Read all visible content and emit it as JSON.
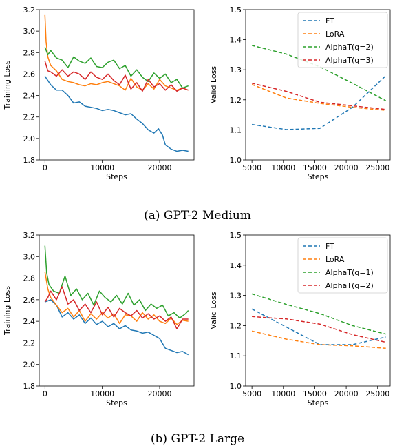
{
  "captions": {
    "a": "(a) GPT-2 Medium",
    "b": "(b) GPT-2 Large"
  },
  "colors": {
    "FT": "#1f77b4",
    "LoRA": "#ff7f0e",
    "AlphaT_a": "#2ca02c",
    "AlphaT_b": "#d62728"
  },
  "chart_data": [
    {
      "type": "line",
      "panel": "GPT-2 Medium training",
      "title": "",
      "xlabel": "Steps",
      "ylabel": "Training Loss",
      "xlim": [
        -1000,
        26000
      ],
      "ylim": [
        1.8,
        3.2
      ],
      "xticks": [
        0,
        10000,
        20000
      ],
      "xtick_labels": [
        "0",
        "10000",
        "20000"
      ],
      "yticks": [
        1.8,
        2.0,
        2.2,
        2.4,
        2.6,
        2.8,
        3.0,
        3.2
      ],
      "ytick_labels": [
        "1.8",
        "2.0",
        "2.2",
        "2.4",
        "2.6",
        "2.8",
        "3.0",
        "3.2"
      ],
      "legend": "none",
      "grid": false,
      "series": [
        {
          "color": "#1f77b4",
          "x": [
            0,
            500,
            1000,
            2000,
            3000,
            4000,
            5000,
            6000,
            7000,
            8000,
            9000,
            10000,
            11000,
            12000,
            13000,
            14000,
            15000,
            16000,
            17000,
            18000,
            19000,
            19800,
            20500,
            21000,
            22000,
            23000,
            24000,
            25000
          ],
          "y": [
            2.58,
            2.54,
            2.5,
            2.45,
            2.45,
            2.4,
            2.33,
            2.34,
            2.3,
            2.29,
            2.28,
            2.26,
            2.27,
            2.26,
            2.24,
            2.22,
            2.23,
            2.18,
            2.14,
            2.08,
            2.05,
            2.09,
            2.03,
            1.94,
            1.9,
            1.88,
            1.89,
            1.88
          ]
        },
        {
          "color": "#ff7f0e",
          "x": [
            0,
            200,
            500,
            1000,
            2000,
            3000,
            4000,
            5000,
            6000,
            7000,
            8000,
            9000,
            10000,
            11000,
            12000,
            13000,
            14000,
            15000,
            16000,
            17000,
            18000,
            19000,
            20000,
            21000,
            22000,
            23000,
            24000,
            25000
          ],
          "y": [
            3.15,
            2.9,
            2.76,
            2.68,
            2.63,
            2.55,
            2.53,
            2.52,
            2.5,
            2.49,
            2.51,
            2.5,
            2.52,
            2.53,
            2.51,
            2.49,
            2.45,
            2.56,
            2.48,
            2.45,
            2.51,
            2.46,
            2.55,
            2.49,
            2.47,
            2.45,
            2.47,
            2.45
          ]
        },
        {
          "color": "#2ca02c",
          "x": [
            0,
            500,
            1000,
            2000,
            3000,
            4000,
            5000,
            6000,
            7000,
            8000,
            9000,
            10000,
            11000,
            12000,
            13000,
            14000,
            15000,
            16000,
            17000,
            18000,
            19000,
            20000,
            21000,
            22000,
            23000,
            24000,
            25000
          ],
          "y": [
            2.85,
            2.78,
            2.82,
            2.75,
            2.73,
            2.66,
            2.76,
            2.72,
            2.7,
            2.75,
            2.67,
            2.66,
            2.71,
            2.73,
            2.65,
            2.68,
            2.58,
            2.64,
            2.57,
            2.53,
            2.61,
            2.56,
            2.6,
            2.52,
            2.55,
            2.47,
            2.49
          ]
        },
        {
          "color": "#d62728",
          "x": [
            0,
            500,
            1000,
            2000,
            3000,
            4000,
            5000,
            6000,
            7000,
            8000,
            9000,
            10000,
            11000,
            12000,
            13000,
            14000,
            15000,
            16000,
            17000,
            18000,
            19000,
            20000,
            21000,
            22000,
            23000,
            24000,
            25000
          ],
          "y": [
            2.72,
            2.63,
            2.62,
            2.58,
            2.64,
            2.58,
            2.62,
            2.6,
            2.55,
            2.62,
            2.57,
            2.55,
            2.6,
            2.54,
            2.5,
            2.59,
            2.46,
            2.52,
            2.44,
            2.55,
            2.48,
            2.51,
            2.45,
            2.5,
            2.44,
            2.47,
            2.45
          ]
        }
      ]
    },
    {
      "type": "line",
      "panel": "GPT-2 Medium validation",
      "title": "",
      "xlabel": "Steps",
      "ylabel": "Valid Loss",
      "xlim": [
        4000,
        27000
      ],
      "ylim": [
        1.0,
        1.5
      ],
      "xticks": [
        5000,
        10000,
        15000,
        20000,
        25000
      ],
      "xtick_labels": [
        "5000",
        "10000",
        "15000",
        "20000",
        "25000"
      ],
      "yticks": [
        1.0,
        1.1,
        1.2,
        1.3,
        1.4,
        1.5
      ],
      "ytick_labels": [
        "1.0",
        "1.1",
        "1.2",
        "1.3",
        "1.4",
        "1.5"
      ],
      "legend": "top-right",
      "grid": false,
      "series": [
        {
          "name": "FT",
          "color": "#1f77b4",
          "x": [
            5000,
            10500,
            15800,
            21000,
            26300
          ],
          "y": [
            1.118,
            1.101,
            1.105,
            1.175,
            1.28
          ]
        },
        {
          "name": "LoRA",
          "color": "#ff7f0e",
          "x": [
            5000,
            10500,
            15800,
            21000,
            26300
          ],
          "y": [
            1.251,
            1.206,
            1.188,
            1.175,
            1.165
          ]
        },
        {
          "name": "AlphaT(q=2)",
          "color": "#2ca02c",
          "x": [
            5000,
            10500,
            15800,
            21000,
            26300
          ],
          "y": [
            1.381,
            1.352,
            1.31,
            1.255,
            1.197
          ]
        },
        {
          "name": "AlphaT(q=3)",
          "color": "#d62728",
          "x": [
            5000,
            10500,
            15800,
            21000,
            26300
          ],
          "y": [
            1.255,
            1.228,
            1.192,
            1.18,
            1.168
          ]
        }
      ]
    },
    {
      "type": "line",
      "panel": "GPT-2 Large training",
      "title": "",
      "xlabel": "Steps",
      "ylabel": "Training Loss",
      "xlim": [
        -1000,
        26000
      ],
      "ylim": [
        1.8,
        3.2
      ],
      "xticks": [
        0,
        10000,
        20000
      ],
      "xtick_labels": [
        "0",
        "10000",
        "20000"
      ],
      "yticks": [
        1.8,
        2.0,
        2.2,
        2.4,
        2.6,
        2.8,
        3.0,
        3.2
      ],
      "ytick_labels": [
        "1.8",
        "2.0",
        "2.2",
        "2.4",
        "2.6",
        "2.8",
        "3.0",
        "3.2"
      ],
      "legend": "none",
      "grid": false,
      "series": [
        {
          "color": "#1f77b4",
          "x": [
            0,
            1000,
            2000,
            3000,
            4000,
            5000,
            6000,
            7000,
            8000,
            9000,
            10000,
            11000,
            12000,
            13000,
            14000,
            15000,
            16000,
            17000,
            18000,
            19000,
            20000,
            21000,
            22000,
            23000,
            24000,
            25000
          ],
          "y": [
            2.58,
            2.6,
            2.55,
            2.44,
            2.48,
            2.42,
            2.46,
            2.38,
            2.43,
            2.37,
            2.4,
            2.35,
            2.38,
            2.33,
            2.36,
            2.32,
            2.31,
            2.29,
            2.3,
            2.27,
            2.24,
            2.15,
            2.13,
            2.11,
            2.12,
            2.09
          ]
        },
        {
          "color": "#ff7f0e",
          "x": [
            0,
            500,
            1000,
            2000,
            3000,
            4000,
            5000,
            6000,
            7000,
            8000,
            9000,
            10000,
            11000,
            12000,
            13000,
            14000,
            15000,
            16000,
            17000,
            18000,
            19000,
            20000,
            21000,
            22000,
            23000,
            24000,
            25000
          ],
          "y": [
            2.86,
            2.7,
            2.62,
            2.55,
            2.48,
            2.52,
            2.44,
            2.5,
            2.4,
            2.47,
            2.42,
            2.48,
            2.43,
            2.47,
            2.38,
            2.46,
            2.45,
            2.4,
            2.48,
            2.42,
            2.46,
            2.4,
            2.38,
            2.43,
            2.37,
            2.41,
            2.4
          ]
        },
        {
          "color": "#2ca02c",
          "x": [
            0,
            300,
            700,
            1500,
            2500,
            3500,
            4500,
            5500,
            6500,
            7500,
            8500,
            9500,
            10500,
            11500,
            12500,
            13500,
            14500,
            15500,
            16500,
            17500,
            18500,
            19500,
            20500,
            21500,
            22500,
            23500,
            24500,
            25000
          ],
          "y": [
            3.1,
            2.85,
            2.74,
            2.68,
            2.66,
            2.82,
            2.64,
            2.7,
            2.6,
            2.66,
            2.55,
            2.68,
            2.62,
            2.58,
            2.64,
            2.56,
            2.66,
            2.55,
            2.6,
            2.5,
            2.56,
            2.52,
            2.55,
            2.45,
            2.48,
            2.43,
            2.47,
            2.5
          ]
        },
        {
          "color": "#d62728",
          "x": [
            0,
            500,
            1000,
            2000,
            3000,
            4000,
            5000,
            6000,
            7000,
            8000,
            9000,
            10000,
            11000,
            12000,
            13000,
            14000,
            15000,
            16000,
            17000,
            18000,
            19000,
            20000,
            21000,
            22000,
            23000,
            24000,
            25000
          ],
          "y": [
            2.58,
            2.62,
            2.68,
            2.6,
            2.72,
            2.56,
            2.6,
            2.5,
            2.56,
            2.48,
            2.58,
            2.46,
            2.53,
            2.44,
            2.52,
            2.48,
            2.45,
            2.5,
            2.43,
            2.47,
            2.42,
            2.45,
            2.4,
            2.44,
            2.33,
            2.42,
            2.42
          ]
        }
      ]
    },
    {
      "type": "line",
      "panel": "GPT-2 Large validation",
      "title": "",
      "xlabel": "Steps",
      "ylabel": "Valid Loss",
      "xlim": [
        4000,
        27000
      ],
      "ylim": [
        1.0,
        1.5
      ],
      "xticks": [
        5000,
        10000,
        15000,
        20000,
        25000
      ],
      "xtick_labels": [
        "5000",
        "10000",
        "15000",
        "20000",
        "25000"
      ],
      "yticks": [
        1.0,
        1.1,
        1.2,
        1.3,
        1.4,
        1.5
      ],
      "ytick_labels": [
        "1.0",
        "1.1",
        "1.2",
        "1.3",
        "1.4",
        "1.5"
      ],
      "legend": "top-right",
      "grid": false,
      "series": [
        {
          "name": "FT",
          "color": "#1f77b4",
          "x": [
            5000,
            10500,
            15800,
            21000,
            26300
          ],
          "y": [
            1.255,
            1.195,
            1.137,
            1.137,
            1.162
          ]
        },
        {
          "name": "LoRA",
          "color": "#ff7f0e",
          "x": [
            5000,
            10500,
            15800,
            21000,
            26300
          ],
          "y": [
            1.182,
            1.155,
            1.137,
            1.133,
            1.125
          ]
        },
        {
          "name": "AlphaT(q=1)",
          "color": "#2ca02c",
          "x": [
            5000,
            10500,
            15800,
            21000,
            26300
          ],
          "y": [
            1.305,
            1.27,
            1.24,
            1.2,
            1.172
          ]
        },
        {
          "name": "AlphaT(q=2)",
          "color": "#d62728",
          "x": [
            5000,
            10500,
            15800,
            21000,
            26300
          ],
          "y": [
            1.23,
            1.222,
            1.205,
            1.17,
            1.145
          ]
        }
      ]
    }
  ]
}
